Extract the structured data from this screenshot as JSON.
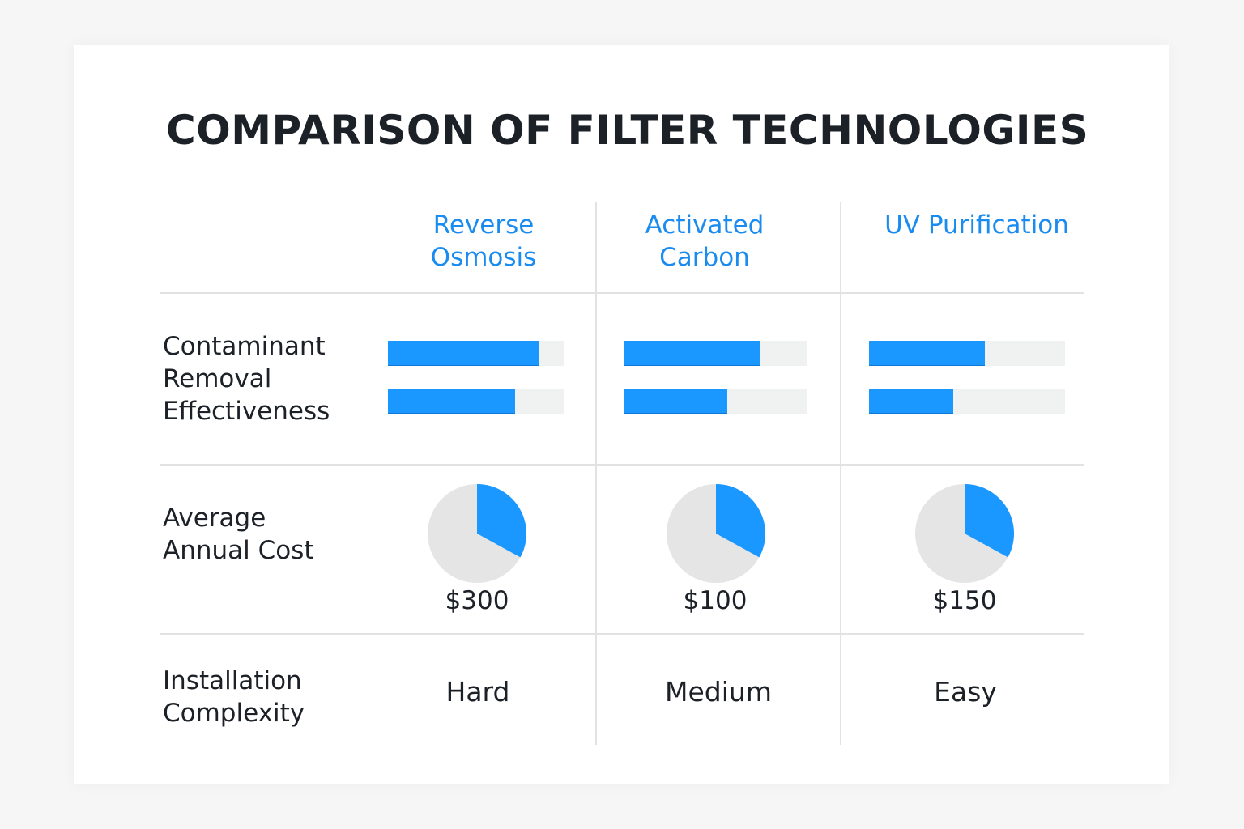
{
  "chart_data": {
    "type": "table",
    "title": "COMPARISON OF FILTER TECHNOLOGIES",
    "columns": [
      "Reverse\nOsmosis",
      "Activated\nCarbon",
      "UV Purification"
    ],
    "rows": [
      {
        "label": "Contaminant\nRemoval\nEffectiveness",
        "kind": "bars",
        "values": [
          [
            0.86,
            0.72
          ],
          [
            0.74,
            0.56
          ],
          [
            0.59,
            0.43
          ]
        ]
      },
      {
        "label": "Average\nAnnual Cost",
        "kind": "pie",
        "pie_fraction": [
          0.33,
          0.33,
          0.33
        ],
        "values": [
          "$300",
          "$100",
          "$150"
        ]
      },
      {
        "label": "Installation\nComplexity",
        "kind": "text",
        "values": [
          "Hard",
          "Medium",
          "Easy"
        ]
      }
    ]
  },
  "colors": {
    "accent": "#1a98ff",
    "header": "#1a8cf0",
    "track": "#f0f1f1",
    "pie_bg": "#e5e5e5"
  }
}
